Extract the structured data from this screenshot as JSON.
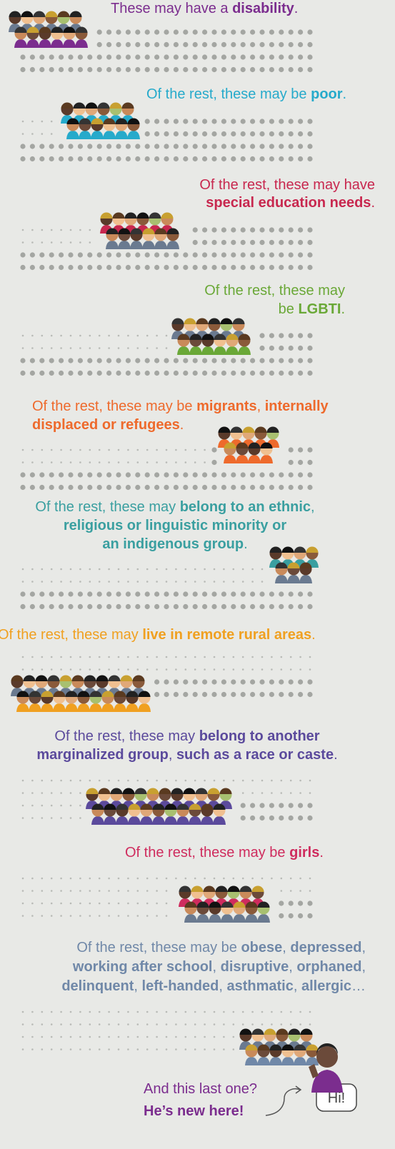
{
  "sections": [
    {
      "color": "#7b2d8e",
      "lines": [
        [
          {
            "text": "These may have a "
          },
          {
            "text": "disability",
            "bold": true
          },
          {
            "text": "."
          }
        ]
      ]
    },
    {
      "color": "#26aacb",
      "lines": [
        [
          {
            "text": "Of the rest, these may be "
          },
          {
            "text": "poor",
            "bold": true
          },
          {
            "text": "."
          }
        ]
      ]
    },
    {
      "color": "#c8284f",
      "lines": [
        [
          {
            "text": "Of the rest, these may have"
          }
        ],
        [
          {
            "text": "special education needs",
            "bold": true
          },
          {
            "text": "."
          }
        ]
      ]
    },
    {
      "color": "#6aa837",
      "lines": [
        [
          {
            "text": "Of the rest, these may"
          }
        ],
        [
          {
            "text": "be "
          },
          {
            "text": "LGBTI",
            "bold": true
          },
          {
            "text": "."
          }
        ]
      ]
    },
    {
      "color": "#ee6a2c",
      "lines": [
        [
          {
            "text": "Of the rest, these may be "
          },
          {
            "text": "migrants",
            "bold": true
          },
          {
            "text": ", "
          },
          {
            "text": "internally",
            "bold": true
          }
        ],
        [
          {
            "text": "displaced or refugees",
            "bold": true
          },
          {
            "text": "."
          }
        ]
      ]
    },
    {
      "color": "#3a9fa0",
      "lines": [
        [
          {
            "text": "Of the rest, these may "
          },
          {
            "text": "belong to an ethnic",
            "bold": true
          },
          {
            "text": ","
          }
        ],
        [
          {
            "text": "religious or linguistic minority or",
            "bold": true
          }
        ],
        [
          {
            "text": "an indigenous group",
            "bold": true
          },
          {
            "text": "."
          }
        ]
      ]
    },
    {
      "color": "#f0a020",
      "lines": [
        [
          {
            "text": "Of the rest, these may "
          },
          {
            "text": "live in remote rural areas",
            "bold": true
          },
          {
            "text": "."
          }
        ]
      ]
    },
    {
      "color": "#5b4a9c",
      "lines": [
        [
          {
            "text": "Of the rest, these may "
          },
          {
            "text": "belong to another",
            "bold": true
          }
        ],
        [
          {
            "text": "marginalized group",
            "bold": true
          },
          {
            "text": ", "
          },
          {
            "text": "such as a race or caste",
            "bold": true
          },
          {
            "text": "."
          }
        ]
      ]
    },
    {
      "color": "#cf2c5e",
      "lines": [
        [
          {
            "text": "Of the rest, these may be "
          },
          {
            "text": "girls",
            "bold": true
          },
          {
            "text": "."
          }
        ]
      ]
    },
    {
      "color": "#7088a8",
      "lines": [
        [
          {
            "text": "Of the rest, these may be "
          },
          {
            "text": "obese",
            "bold": true
          },
          {
            "text": ", "
          },
          {
            "text": "depressed",
            "bold": true
          },
          {
            "text": ","
          }
        ],
        [
          {
            "text": "working after school",
            "bold": true
          },
          {
            "text": ", "
          },
          {
            "text": "disruptive",
            "bold": true
          },
          {
            "text": ", "
          },
          {
            "text": "orphaned",
            "bold": true
          },
          {
            "text": ","
          }
        ],
        [
          {
            "text": "delinquent",
            "bold": true
          },
          {
            "text": ", "
          },
          {
            "text": "left-handed",
            "bold": true
          },
          {
            "text": ", "
          },
          {
            "text": "asthmatic",
            "bold": true
          },
          {
            "text": ", "
          },
          {
            "text": "allergic",
            "bold": true
          },
          {
            "text": "…"
          }
        ]
      ]
    }
  ],
  "footer": {
    "color": "#7b2d8e",
    "lines": [
      "And this last one?",
      "He’s new here!"
    ],
    "bubble": "Hi!"
  }
}
